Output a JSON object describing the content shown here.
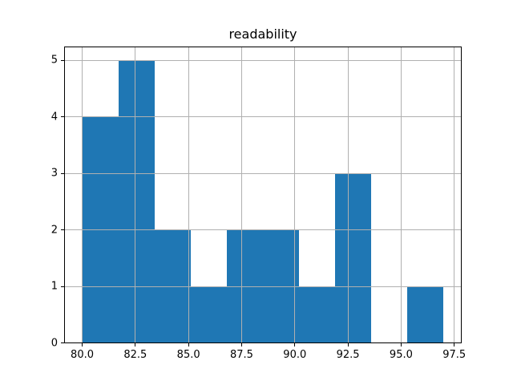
{
  "chart_data": {
    "type": "bar",
    "subtype": "histogram",
    "title": "readability",
    "xlabel": "",
    "ylabel": "",
    "bin_edges": [
      80.0,
      81.7,
      83.4,
      85.1,
      86.8,
      88.5,
      90.2,
      91.9,
      93.6,
      95.3,
      97.0
    ],
    "values": [
      4,
      5,
      2,
      1,
      2,
      2,
      1,
      3,
      0,
      1
    ],
    "xticks": [
      80.0,
      82.5,
      85.0,
      87.5,
      90.0,
      92.5,
      95.0,
      97.5
    ],
    "xtick_labels": [
      "80.0",
      "82.5",
      "85.0",
      "87.5",
      "90.0",
      "92.5",
      "95.0",
      "97.5"
    ],
    "yticks": [
      0,
      1,
      2,
      3,
      4,
      5
    ],
    "ytick_labels": [
      "0",
      "1",
      "2",
      "3",
      "4",
      "5"
    ],
    "xlim": [
      79.15,
      97.85
    ],
    "ylim": [
      0,
      5.25
    ],
    "grid": true,
    "legend": null,
    "colors": {
      "bar_fill": "#1f77b4",
      "grid_line": "#b0b0b0",
      "spine": "#000000",
      "text": "#000000",
      "background": "#ffffff"
    }
  }
}
